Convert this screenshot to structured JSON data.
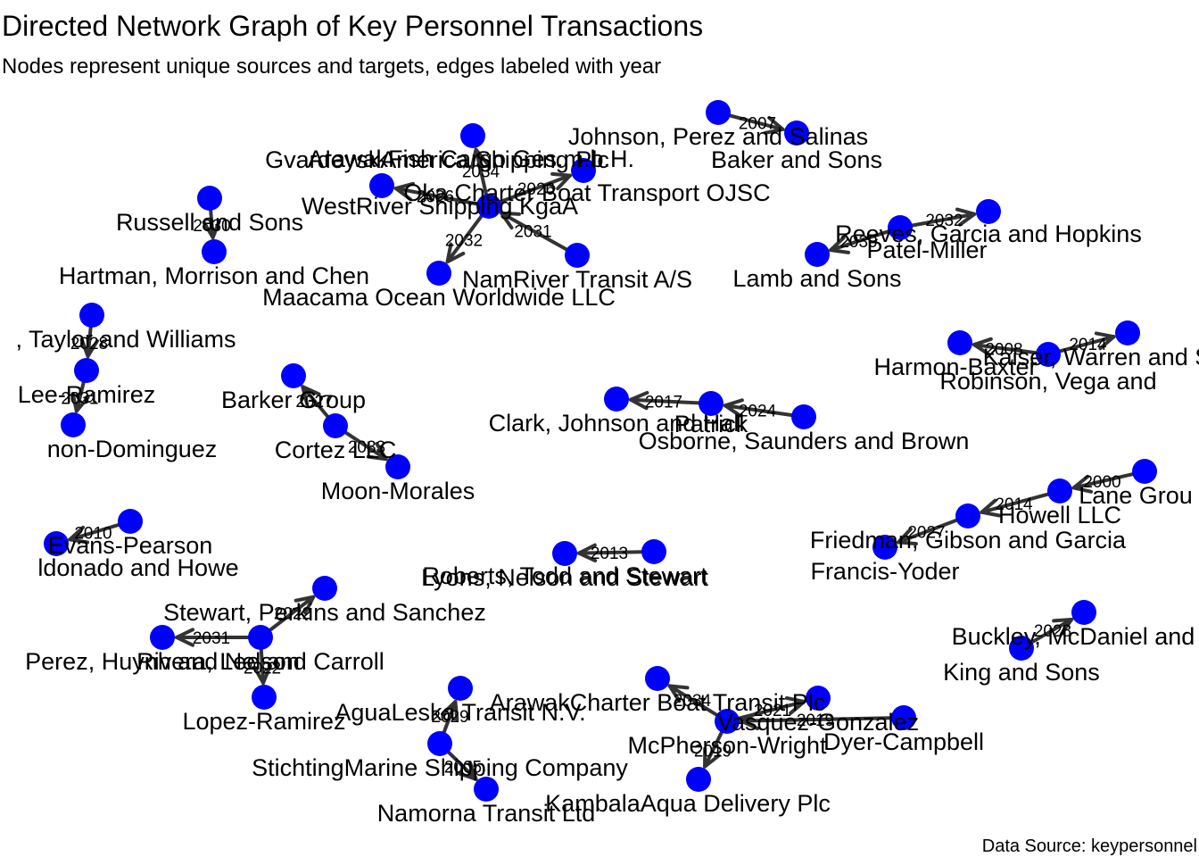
{
  "title": "Directed Network Graph of Key Personnel Transactions",
  "subtitle": "Nodes represent unique sources and targets, edges labeled with year",
  "caption": "Data Source: keypersonnel",
  "colors": {
    "node": "#0000ff",
    "edge": "#333333",
    "background": "#ffffff"
  },
  "nodes": [
    {
      "id": "n1",
      "label": "Johnson, Perez and Salinas"
    },
    {
      "id": "n2",
      "label": "Baker and Sons"
    },
    {
      "id": "n3",
      "label": "ArawakFish Cargo Ges.m.b.H."
    },
    {
      "id": "n4",
      "label": "Oka Charter Boat Transport OJSC"
    },
    {
      "id": "n5",
      "label": "WestRiver Shipping KgaA"
    },
    {
      "id": "n6",
      "label": "GvardeyskAmerica Shipping Plc"
    },
    {
      "id": "n7",
      "label": "NamRiver Transit A/S"
    },
    {
      "id": "n8",
      "label": "Maacama Ocean Worldwide LLC"
    },
    {
      "id": "n9",
      "label": "Russell and Sons"
    },
    {
      "id": "n10",
      "label": "Hartman, Morrison and Chen"
    },
    {
      "id": "n11",
      "label": "Reeves, Garcia and Hopkins"
    },
    {
      "id": "n12",
      "label": "Patel-Miller"
    },
    {
      "id": "n13",
      "label": "Lamb and Sons"
    },
    {
      "id": "n14",
      "label": ", Taylor and Williams"
    },
    {
      "id": "n15",
      "label": "Lee-Ramirez"
    },
    {
      "id": "n16",
      "label": "non-Dominguez"
    },
    {
      "id": "n17",
      "label": "Barker Group"
    },
    {
      "id": "n18",
      "label": "Cortez LLC"
    },
    {
      "id": "n19",
      "label": "Moon-Morales"
    },
    {
      "id": "n20",
      "label": "Clark, Johnson and Hall"
    },
    {
      "id": "n21",
      "label": "Patrick"
    },
    {
      "id": "n22",
      "label": "Osborne, Saunders and Brown"
    },
    {
      "id": "n23",
      "label": "Robinson, Vega and"
    },
    {
      "id": "n24",
      "label": "Harmon-Baxter"
    },
    {
      "id": "n25",
      "label": "Kaiser, Warren and Shepar"
    },
    {
      "id": "n26",
      "label": "Lane Grou"
    },
    {
      "id": "n27",
      "label": "Howell LLC"
    },
    {
      "id": "n28",
      "label": "Friedman, Gibson and Garcia"
    },
    {
      "id": "n29",
      "label": "Francis-Yoder"
    },
    {
      "id": "n30",
      "label": "Evans-Pearson"
    },
    {
      "id": "n31",
      "label": "ldonado and Howe"
    },
    {
      "id": "n32",
      "label": "Lyons, Nelson and Stewart"
    },
    {
      "id": "n33",
      "label": "Roberts, Todd and Stewart"
    },
    {
      "id": "n34",
      "label": "Stewart, Perkins and Sanchez"
    },
    {
      "id": "n35",
      "label": "Perez, Huynh and Nelson"
    },
    {
      "id": "n36",
      "label": "Rivera, Lee and Carroll"
    },
    {
      "id": "n37",
      "label": "Lopez-Ramirez"
    },
    {
      "id": "n38",
      "label": "Buckley, McDaniel and A"
    },
    {
      "id": "n39",
      "label": "King and Sons"
    },
    {
      "id": "n40",
      "label": "AguaLeska Transit N.V."
    },
    {
      "id": "n41",
      "label": "StichtingMarine Shipping Company"
    },
    {
      "id": "n42",
      "label": "Namorna Transit Ltd"
    },
    {
      "id": "n43",
      "label": "ArawakCharter Boat Transit Plc"
    },
    {
      "id": "n44",
      "label": "McPherson-Wright"
    },
    {
      "id": "n45",
      "label": "Vasquez-Gonzalez"
    },
    {
      "id": "n46",
      "label": "Dyer-Campbell"
    },
    {
      "id": "n47",
      "label": "KambalaAqua Delivery Plc"
    }
  ],
  "edges": [
    {
      "from": "n1",
      "to": "n2",
      "year": "2007"
    },
    {
      "from": "n5",
      "to": "n3",
      "year": "2026"
    },
    {
      "from": "n5",
      "to": "n4",
      "year": "2026"
    },
    {
      "from": "n5",
      "to": "n6",
      "year": "2034"
    },
    {
      "from": "n7",
      "to": "n5",
      "year": "2031"
    },
    {
      "from": "n5",
      "to": "n8",
      "year": "2032"
    },
    {
      "from": "n9",
      "to": "n10",
      "year": "2030"
    },
    {
      "from": "n12",
      "to": "n11",
      "year": "2032"
    },
    {
      "from": "n12",
      "to": "n13",
      "year": "2030"
    },
    {
      "from": "n14",
      "to": "n15",
      "year": "2028"
    },
    {
      "from": "n15",
      "to": "n16",
      "year": "2031"
    },
    {
      "from": "n18",
      "to": "n17",
      "year": "2027"
    },
    {
      "from": "n18",
      "to": "n19",
      "year": "2033"
    },
    {
      "from": "n21",
      "to": "n20",
      "year": "2017"
    },
    {
      "from": "n22",
      "to": "n21",
      "year": "2024"
    },
    {
      "from": "n23",
      "to": "n24",
      "year": "2008"
    },
    {
      "from": "n23",
      "to": "n25",
      "year": "2014"
    },
    {
      "from": "n26",
      "to": "n27",
      "year": "2000"
    },
    {
      "from": "n27",
      "to": "n28",
      "year": "2014"
    },
    {
      "from": "n28",
      "to": "n29",
      "year": "2027"
    },
    {
      "from": "n30",
      "to": "n31",
      "year": "2010"
    },
    {
      "from": "n33",
      "to": "n32",
      "year": "2013"
    },
    {
      "from": "n36",
      "to": "n34",
      "year": "2022"
    },
    {
      "from": "n36",
      "to": "n35",
      "year": "2031"
    },
    {
      "from": "n36",
      "to": "n37",
      "year": "2022"
    },
    {
      "from": "n39",
      "to": "n38",
      "year": "2028"
    },
    {
      "from": "n41",
      "to": "n40",
      "year": "2029"
    },
    {
      "from": "n41",
      "to": "n42",
      "year": "2005"
    },
    {
      "from": "n44",
      "to": "n43",
      "year": "2034"
    },
    {
      "from": "n46",
      "to": "n44",
      "year": "2019"
    },
    {
      "from": "n44",
      "to": "n45",
      "year": "2021"
    },
    {
      "from": "n44",
      "to": "n47",
      "year": "2019"
    }
  ]
}
